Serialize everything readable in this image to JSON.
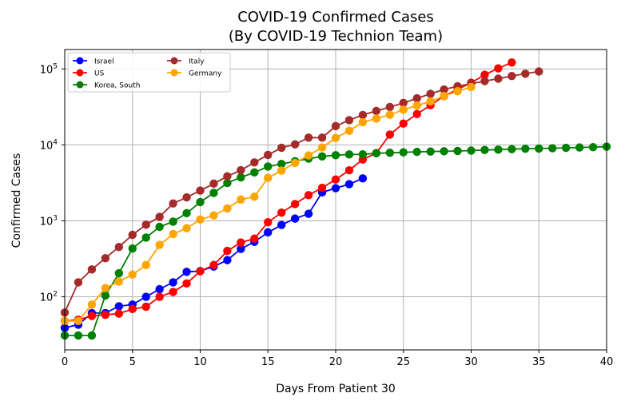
{
  "chart_data": {
    "type": "line",
    "title_line1": "COVID-19 Confirmed Cases",
    "title_line2": "(By COVID-19 Technion Team)",
    "xlabel": "Days From Patient 30",
    "ylabel": "Confirmed Cases",
    "xlim": [
      0,
      40
    ],
    "ylim": [
      20,
      180000
    ],
    "yscale": "log",
    "grid": true,
    "legend_position": "top-left",
    "x_ticks": [
      0,
      5,
      10,
      15,
      20,
      25,
      30,
      35,
      40
    ],
    "x_tick_labels": [
      "0",
      "5",
      "10",
      "15",
      "20",
      "25",
      "30",
      "35",
      "40"
    ],
    "y_ticks": [
      100,
      1000,
      10000,
      100000
    ],
    "y_tick_labels": [
      {
        "base": "10",
        "exp": "2"
      },
      {
        "base": "10",
        "exp": "3"
      },
      {
        "base": "10",
        "exp": "4"
      },
      {
        "base": "10",
        "exp": "5"
      }
    ],
    "series": [
      {
        "name": "Israel",
        "color": "#0000ff",
        "x": [
          0,
          1,
          2,
          3,
          4,
          5,
          6,
          7,
          8,
          9,
          10,
          11,
          12,
          13,
          14,
          15,
          16,
          17,
          18,
          19,
          20,
          21,
          22
        ],
        "y": [
          39,
          43,
          61,
          61,
          75,
          79,
          100,
          126,
          155,
          213,
          218,
          250,
          304,
          427,
          529,
          705,
          883,
          1071,
          1238,
          2369,
          2693,
          3035,
          3619
        ]
      },
      {
        "name": "US",
        "color": "#ff0000",
        "x": [
          0,
          1,
          2,
          3,
          4,
          5,
          6,
          7,
          8,
          9,
          10,
          11,
          12,
          13,
          14,
          15,
          16,
          17,
          18,
          19,
          20,
          21,
          22,
          23,
          24,
          25,
          26,
          27,
          28,
          29,
          30,
          31,
          32,
          33
        ],
        "y": [
          48,
          50,
          56,
          58,
          60,
          69,
          74,
          100,
          116,
          150,
          217,
          262,
          402,
          518,
          583,
          959,
          1281,
          1663,
          2179,
          2726,
          3499,
          4632,
          6421,
          7783,
          13677,
          19100,
          25489,
          33276,
          43847,
          53740,
          65778,
          83836,
          101657,
          121478
        ]
      },
      {
        "name": "Korea, South",
        "color": "#008000",
        "x": [
          0,
          1,
          2,
          3,
          4,
          5,
          6,
          7,
          8,
          9,
          10,
          11,
          12,
          13,
          14,
          15,
          16,
          17,
          18,
          19,
          20,
          21,
          22,
          23,
          24,
          25,
          26,
          27,
          28,
          29,
          30,
          31,
          32,
          33,
          34,
          35,
          36,
          37,
          38,
          39,
          40
        ],
        "y": [
          31,
          31,
          31,
          104,
          204,
          433,
          602,
          833,
          977,
          1261,
          1766,
          2337,
          3150,
          3736,
          4335,
          5186,
          5621,
          6088,
          6593,
          7041,
          7314,
          7478,
          7513,
          7755,
          7869,
          7979,
          8086,
          8162,
          8236,
          8320,
          8413,
          8565,
          8652,
          8799,
          8897,
          8961,
          9037,
          9137,
          9241,
          9332,
          9478
        ]
      },
      {
        "name": "Italy",
        "color": "#a52a2a",
        "x": [
          0,
          1,
          2,
          3,
          4,
          5,
          6,
          7,
          8,
          9,
          10,
          11,
          12,
          13,
          14,
          15,
          16,
          17,
          18,
          19,
          20,
          21,
          22,
          23,
          24,
          25,
          26,
          27,
          28,
          29,
          30,
          31,
          32,
          33,
          34,
          35
        ],
        "y": [
          62,
          155,
          229,
          322,
          453,
          655,
          888,
          1128,
          1694,
          2036,
          2502,
          3089,
          3858,
          4636,
          5883,
          7375,
          9172,
          10149,
          12462,
          12462,
          17660,
          21157,
          24747,
          27980,
          31506,
          35713,
          41035,
          47021,
          53578,
          59138,
          63927,
          69176,
          74386,
          80589,
          86498,
          92472
        ]
      },
      {
        "name": "Germany",
        "color": "#ffa500",
        "x": [
          0,
          1,
          2,
          3,
          4,
          5,
          6,
          7,
          8,
          9,
          10,
          11,
          12,
          13,
          14,
          15,
          16,
          17,
          18,
          19,
          20,
          21,
          22,
          23,
          24,
          25,
          26,
          27,
          28,
          29,
          30
        ],
        "y": [
          48,
          48,
          79,
          130,
          159,
          196,
          262,
          482,
          670,
          799,
          1040,
          1176,
          1457,
          1908,
          2078,
          3675,
          4585,
          5795,
          7272,
          9257,
          12327,
          15320,
          19848,
          22213,
          24873,
          29056,
          32986,
          37323,
          43938,
          50871,
          57695
        ]
      }
    ]
  }
}
